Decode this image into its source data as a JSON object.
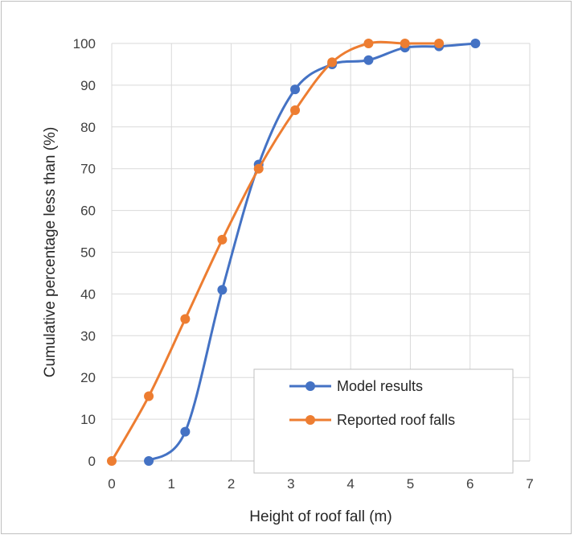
{
  "chart_data": {
    "type": "line",
    "xlabel": "Height of roof fall (m)",
    "ylabel": "Cumulative percentage  less than (%)",
    "xlim": [
      0,
      7
    ],
    "ylim": [
      0,
      100
    ],
    "x_ticks": [
      "0",
      "1",
      "2",
      "3",
      "4",
      "5",
      "6",
      "7"
    ],
    "y_ticks": [
      "0",
      "10",
      "20",
      "30",
      "40",
      "50",
      "60",
      "70",
      "80",
      "90",
      "100"
    ],
    "grid": true,
    "legend_position": "bottom-right",
    "series": [
      {
        "name": "Model results",
        "color": "#4472C4",
        "points": [
          {
            "x": 0.62,
            "y": 0
          },
          {
            "x": 1.23,
            "y": 7
          },
          {
            "x": 1.85,
            "y": 41
          },
          {
            "x": 2.46,
            "y": 71
          },
          {
            "x": 3.07,
            "y": 89
          },
          {
            "x": 3.69,
            "y": 95
          },
          {
            "x": 4.3,
            "y": 96
          },
          {
            "x": 4.91,
            "y": 99
          },
          {
            "x": 5.48,
            "y": 99.3
          },
          {
            "x": 6.09,
            "y": 100
          }
        ]
      },
      {
        "name": "Reported roof falls",
        "color": "#ED7D31",
        "points": [
          {
            "x": 0.0,
            "y": 0
          },
          {
            "x": 0.62,
            "y": 15.5
          },
          {
            "x": 1.23,
            "y": 34
          },
          {
            "x": 1.85,
            "y": 53
          },
          {
            "x": 2.46,
            "y": 70
          },
          {
            "x": 3.07,
            "y": 84
          },
          {
            "x": 3.69,
            "y": 95.5
          },
          {
            "x": 4.3,
            "y": 100
          },
          {
            "x": 4.91,
            "y": 100
          },
          {
            "x": 5.48,
            "y": 100
          }
        ]
      }
    ]
  }
}
